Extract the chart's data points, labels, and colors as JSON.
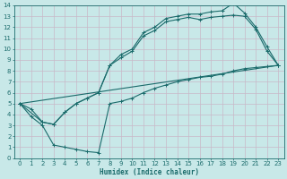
{
  "background_color": "#c8e8e8",
  "grid_color": "#d8e8e8",
  "line_color": "#1a6b6b",
  "xlabel": "Humidex (Indice chaleur)",
  "xlim": [
    -0.5,
    23.5
  ],
  "ylim": [
    0,
    14
  ],
  "xticks": [
    0,
    1,
    2,
    3,
    4,
    5,
    6,
    7,
    8,
    9,
    10,
    11,
    12,
    13,
    14,
    15,
    16,
    17,
    18,
    19,
    20,
    21,
    22,
    23
  ],
  "yticks": [
    0,
    1,
    2,
    3,
    4,
    5,
    6,
    7,
    8,
    9,
    10,
    11,
    12,
    13,
    14
  ],
  "line1_x": [
    0,
    1,
    2,
    3,
    4,
    5,
    6,
    7,
    8,
    9,
    10,
    11,
    12,
    13,
    14,
    15,
    16,
    17,
    18,
    19,
    20,
    21,
    22,
    23
  ],
  "line1_y": [
    5.0,
    4.5,
    3.3,
    3.1,
    4.2,
    5.0,
    5.5,
    6.0,
    8.5,
    9.5,
    10.0,
    11.5,
    12.0,
    12.8,
    13.0,
    13.2,
    13.2,
    13.4,
    13.5,
    14.2,
    13.3,
    12.0,
    10.2,
    8.5
  ],
  "line2_x": [
    0,
    2,
    3,
    4,
    5,
    6,
    7,
    8,
    9,
    10,
    11,
    12,
    13,
    14,
    15,
    16,
    17,
    18,
    19,
    20,
    21,
    22,
    23
  ],
  "line2_y": [
    5.0,
    3.3,
    3.1,
    4.2,
    5.0,
    5.5,
    6.0,
    8.5,
    9.2,
    9.8,
    11.2,
    11.7,
    12.5,
    12.7,
    12.9,
    12.7,
    12.9,
    13.0,
    13.1,
    13.0,
    11.8,
    9.8,
    8.5
  ],
  "line3_x": [
    0,
    23
  ],
  "line3_y": [
    5.0,
    8.5
  ],
  "line4_x": [
    0,
    1,
    2,
    3,
    4,
    5,
    6,
    7,
    8,
    9,
    10,
    11,
    12,
    13,
    14,
    15,
    16,
    17,
    18,
    19,
    20,
    21,
    22,
    23
  ],
  "line4_y": [
    5.0,
    3.8,
    3.0,
    1.2,
    1.0,
    0.8,
    0.6,
    0.5,
    5.0,
    5.2,
    5.5,
    6.0,
    6.4,
    6.7,
    7.0,
    7.2,
    7.4,
    7.5,
    7.7,
    8.0,
    8.2,
    8.3,
    8.4,
    8.5
  ]
}
